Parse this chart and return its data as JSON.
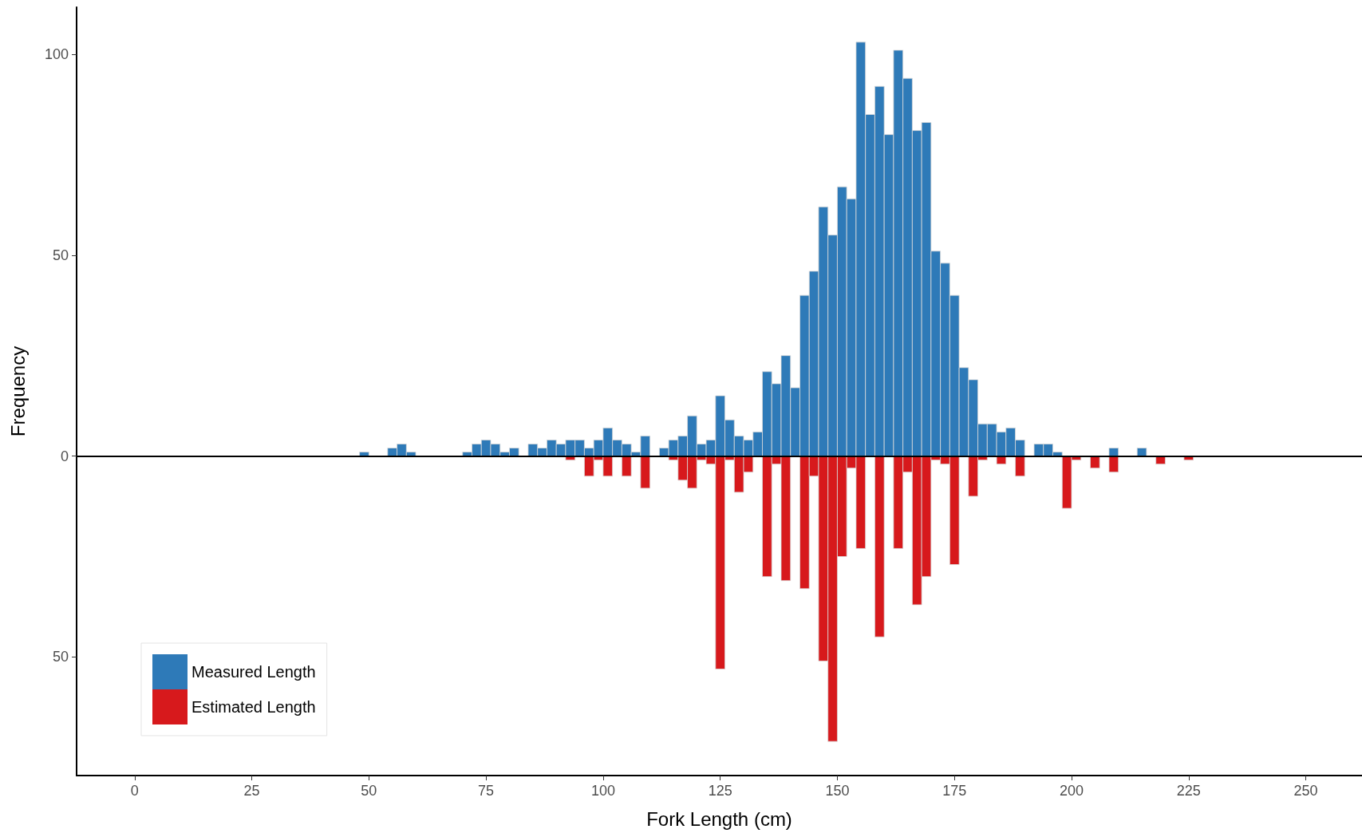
{
  "chart_data": {
    "type": "histogram",
    "xlabel": "Fork Length (cm)",
    "ylabel": "Frequency",
    "bins": [
      48,
      50,
      52,
      54,
      56,
      58,
      60,
      62,
      64,
      66,
      68,
      70,
      72,
      74,
      76,
      78,
      80,
      82,
      84,
      86,
      88,
      90,
      92,
      94,
      96,
      98,
      100,
      102,
      104,
      106,
      108,
      110,
      112,
      114,
      116,
      118,
      120,
      122,
      124,
      126,
      128,
      130,
      132,
      134,
      136,
      138,
      140,
      142,
      144,
      146,
      148,
      150,
      152,
      154,
      156,
      158,
      160,
      162,
      164,
      166,
      168,
      170,
      172,
      174,
      176,
      178,
      180,
      182,
      184,
      186,
      188,
      190,
      192,
      194,
      196,
      198,
      200,
      202,
      204,
      206,
      208,
      210,
      212,
      214,
      216,
      218,
      220,
      222,
      224,
      226
    ],
    "series": [
      {
        "name": "Measured Length",
        "color": "#2e7ab8",
        "values": [
          1,
          0,
          0,
          2,
          3,
          1,
          0,
          0,
          0,
          0,
          0,
          1,
          3,
          4,
          3,
          1,
          2,
          0,
          3,
          2,
          4,
          3,
          4,
          4,
          2,
          4,
          7,
          4,
          3,
          1,
          5,
          0,
          2,
          4,
          5,
          10,
          3,
          4,
          15,
          9,
          5,
          4,
          6,
          21,
          18,
          25,
          17,
          40,
          46,
          62,
          55,
          67,
          64,
          103,
          85,
          92,
          80,
          101,
          94,
          81,
          83,
          51,
          48,
          40,
          22,
          19,
          8,
          8,
          6,
          7,
          4,
          0,
          3,
          3,
          1,
          0,
          0,
          0,
          0,
          0,
          2,
          0,
          0,
          2,
          0,
          0,
          0,
          0,
          0
        ]
      },
      {
        "name": "Estimated Length",
        "color": "#d7191c",
        "values": [
          0,
          0,
          0,
          0,
          0,
          0,
          0,
          0,
          0,
          0,
          0,
          0,
          0,
          0,
          0,
          0,
          0,
          0,
          0,
          0,
          0,
          0,
          -1,
          0,
          -5,
          -1,
          -5,
          0,
          -5,
          0,
          -8,
          0,
          0,
          -1,
          -6,
          -8,
          -1,
          -2,
          -53,
          -1,
          -9,
          -4,
          0,
          -30,
          -2,
          -31,
          0,
          -33,
          -5,
          -51,
          -71,
          -25,
          -3,
          -23,
          0,
          -45,
          0,
          -23,
          -4,
          -37,
          -30,
          -1,
          -2,
          -27,
          0,
          -10,
          -1,
          0,
          -2,
          0,
          -5,
          0,
          0,
          0,
          0,
          -13,
          -1,
          0,
          -3,
          0,
          -4,
          0,
          0,
          0,
          0,
          -2,
          0,
          0,
          -1
        ]
      }
    ],
    "xlim": [
      -12.4,
      262
    ],
    "xticks": [
      0,
      25,
      50,
      75,
      100,
      125,
      150,
      175,
      200,
      225,
      250
    ],
    "ylim": [
      -79.5,
      111.7
    ],
    "yticks": [
      {
        "value": -50,
        "label": "50"
      },
      0,
      50,
      100
    ],
    "ref_lines": [
      {
        "axis": "y",
        "value": 0,
        "color": "#000000"
      }
    ],
    "legend": "bottom left"
  }
}
